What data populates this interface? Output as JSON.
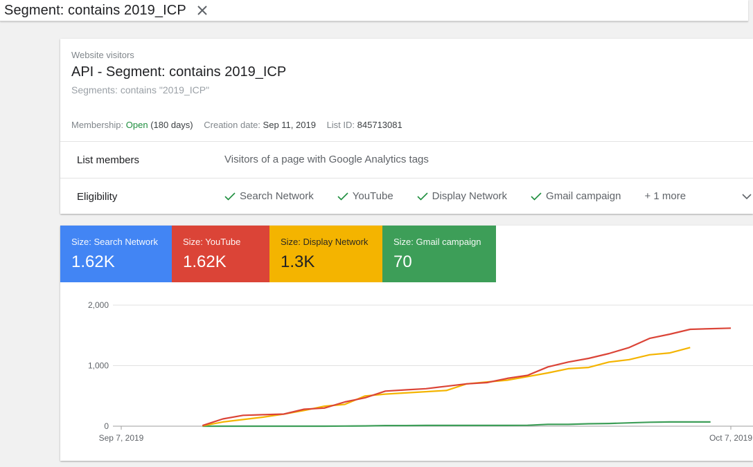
{
  "topbar": {
    "title": "Segment: contains 2019_ICP",
    "close_icon": "close-icon"
  },
  "list": {
    "kind_label": "Website visitors",
    "title": "API - Segment: contains 2019_ICP",
    "subtitle": "Segments: contains \"2019_ICP\"",
    "meta": {
      "membership_label": "Membership:",
      "membership_value": "Open",
      "membership_duration": "(180 days)",
      "creation_label": "Creation date:",
      "creation_value": "Sep 11, 2019",
      "listid_label": "List ID:",
      "listid_value": "845713081"
    },
    "members_label": "List members",
    "members_value": "Visitors of a page with Google Analytics tags",
    "eligibility_label": "Eligibility",
    "eligibility": [
      {
        "label": "Search Network",
        "icon": "check-icon"
      },
      {
        "label": "YouTube",
        "icon": "check-icon"
      },
      {
        "label": "Display Network",
        "icon": "check-icon"
      },
      {
        "label": "Gmail campaign",
        "icon": "check-icon"
      }
    ],
    "eligibility_more": "+ 1 more",
    "expand_icon": "chevron-down-icon",
    "colors": {
      "open": "#1e8e3e",
      "check": "#1e8e3e"
    }
  },
  "tiles": [
    {
      "label": "Size: Search Network",
      "value": "1.62K",
      "color": "#4285f4"
    },
    {
      "label": "Size: YouTube",
      "value": "1.62K",
      "color": "#db4437"
    },
    {
      "label": "Size: Display Network",
      "value": "1.3K",
      "color": "#f4b400"
    },
    {
      "label": "Size: Gmail campaign",
      "value": "70",
      "color": "#3d9e58"
    }
  ],
  "chart_data": {
    "type": "line",
    "title": "",
    "xlabel": "",
    "ylabel": "",
    "x_tick_labels": [
      "Sep 7, 2019",
      "Oct 7, 2019"
    ],
    "x_domain": [
      0,
      30
    ],
    "y_ticks": [
      0,
      1000,
      2000
    ],
    "y_tick_labels": [
      "0",
      "1,000",
      "2,000"
    ],
    "ylim": [
      0,
      2000
    ],
    "grid": true,
    "legend": "none",
    "series": [
      {
        "color": "#db4437",
        "points": [
          [
            4,
            10
          ],
          [
            5,
            120
          ],
          [
            6,
            180
          ],
          [
            7,
            190
          ],
          [
            8,
            200
          ],
          [
            9,
            280
          ],
          [
            10,
            300
          ],
          [
            11,
            400
          ],
          [
            12,
            470
          ],
          [
            13,
            580
          ],
          [
            14,
            600
          ],
          [
            15,
            620
          ],
          [
            16,
            660
          ],
          [
            17,
            700
          ],
          [
            18,
            720
          ],
          [
            19,
            790
          ],
          [
            20,
            840
          ],
          [
            21,
            980
          ],
          [
            22,
            1060
          ],
          [
            23,
            1120
          ],
          [
            24,
            1200
          ],
          [
            25,
            1300
          ],
          [
            26,
            1450
          ],
          [
            27,
            1520
          ],
          [
            28,
            1600
          ],
          [
            29,
            1610
          ],
          [
            30,
            1620
          ]
        ]
      },
      {
        "color": "#f4b400",
        "points": [
          [
            4,
            5
          ],
          [
            5,
            70
          ],
          [
            6,
            110
          ],
          [
            7,
            150
          ],
          [
            8,
            200
          ],
          [
            9,
            260
          ],
          [
            10,
            330
          ],
          [
            11,
            360
          ],
          [
            12,
            500
          ],
          [
            13,
            530
          ],
          [
            14,
            550
          ],
          [
            15,
            570
          ],
          [
            16,
            590
          ],
          [
            17,
            700
          ],
          [
            18,
            730
          ],
          [
            19,
            760
          ],
          [
            20,
            820
          ],
          [
            21,
            880
          ],
          [
            22,
            950
          ],
          [
            23,
            970
          ],
          [
            24,
            1060
          ],
          [
            25,
            1100
          ],
          [
            26,
            1180
          ],
          [
            27,
            1210
          ],
          [
            28,
            1300
          ]
        ]
      },
      {
        "color": "#3d9e58",
        "points": [
          [
            4,
            0
          ],
          [
            5,
            0
          ],
          [
            6,
            0
          ],
          [
            7,
            0
          ],
          [
            8,
            0
          ],
          [
            9,
            0
          ],
          [
            10,
            0
          ],
          [
            11,
            2
          ],
          [
            12,
            5
          ],
          [
            13,
            10
          ],
          [
            14,
            10
          ],
          [
            15,
            12
          ],
          [
            16,
            12
          ],
          [
            17,
            12
          ],
          [
            18,
            12
          ],
          [
            19,
            12
          ],
          [
            20,
            15
          ],
          [
            21,
            30
          ],
          [
            22,
            30
          ],
          [
            23,
            40
          ],
          [
            24,
            45
          ],
          [
            25,
            55
          ],
          [
            26,
            65
          ],
          [
            27,
            70
          ],
          [
            28,
            70
          ],
          [
            29,
            70
          ]
        ]
      }
    ]
  }
}
